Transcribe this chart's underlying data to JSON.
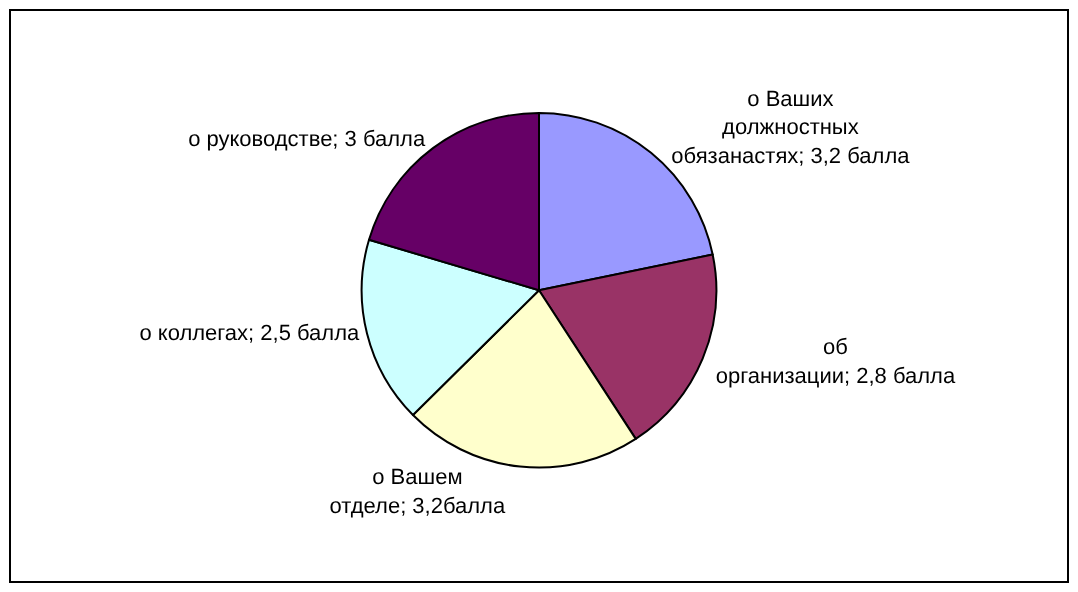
{
  "chart_data": {
    "type": "pie",
    "categories": [
      "о Ваших должностных обязанастях",
      "об организации",
      "о Вашем отделе",
      "о коллегах",
      "о руководстве"
    ],
    "values": [
      3.2,
      2.8,
      3.2,
      2.5,
      3
    ],
    "value_labels": [
      "3,2 балла",
      "2,8 балла",
      "3,2балла",
      "2,5 балла",
      "3 балла"
    ],
    "colors": [
      "#9999ff",
      "#993366",
      "#ffffcc",
      "#ccffff",
      "#660066"
    ],
    "legend": false
  }
}
